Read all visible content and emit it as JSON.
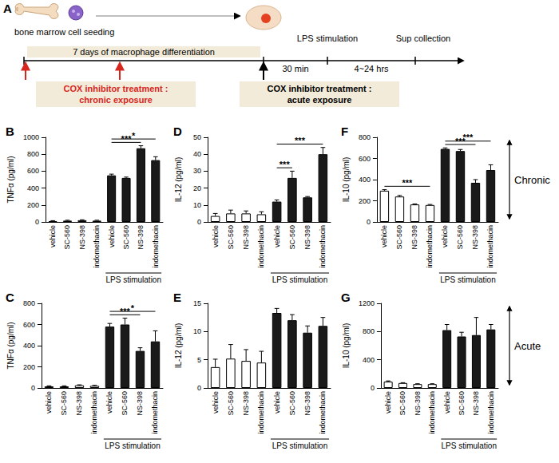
{
  "panel_a": {
    "label": "A",
    "seeding": "bone marrow cell seeding",
    "differentiation": "7 days of macrophage differentiation",
    "stimulation": "LPS stimulation",
    "collection": "Sup collection",
    "time_1": "30 min",
    "time_2": "4~24 hrs",
    "chronic": [
      "COX inhibitor treatment :",
      "chronic exposure"
    ],
    "acute": [
      "COX inhibitor treatment :",
      "acute exposure"
    ]
  },
  "row_labels": [
    "Chronic",
    "Acute"
  ],
  "chart_data": [
    {
      "type": "bar",
      "title": "B",
      "ylabel": "TNFα (pg/ml)",
      "categories": [
        "vehicle",
        "SC-560",
        "NS-398",
        "indomethacin",
        "vehicle",
        "SC-560",
        "NS-398",
        "indomethacin"
      ],
      "values": [
        10,
        15,
        20,
        15,
        550,
        520,
        870,
        730
      ],
      "errors": [
        5,
        5,
        5,
        5,
        15,
        10,
        30,
        40
      ],
      "colors": [
        "#ffffff",
        "#ffffff",
        "#ffffff",
        "#ffffff",
        "#1a1a1a",
        "#1a1a1a",
        "#1a1a1a",
        "#1a1a1a"
      ],
      "ylim": [
        0,
        1000
      ],
      "yticks": [
        0,
        200,
        400,
        600,
        800,
        1000
      ],
      "annotations": [
        {
          "text": "***",
          "from": 4,
          "to": 6
        },
        {
          "text": "*",
          "from": 4,
          "to": 7
        }
      ],
      "group_label": {
        "text": "LPS stimulation",
        "from": 4,
        "to": 7
      }
    },
    {
      "type": "bar",
      "title": "C",
      "ylabel": "TNFα (pg/ml)",
      "categories": [
        "vehicle",
        "SC-560",
        "NS-398",
        "indomethacin",
        "vehicle",
        "SC-560",
        "NS-398",
        "indomethacin"
      ],
      "values": [
        15,
        15,
        25,
        20,
        580,
        600,
        350,
        440
      ],
      "errors": [
        5,
        5,
        5,
        5,
        30,
        60,
        30,
        100
      ],
      "colors": [
        "#ffffff",
        "#ffffff",
        "#ffffff",
        "#ffffff",
        "#1a1a1a",
        "#1a1a1a",
        "#1a1a1a",
        "#1a1a1a"
      ],
      "ylim": [
        0,
        800
      ],
      "yticks": [
        0,
        200,
        400,
        600,
        800
      ],
      "annotations": [
        {
          "text": "***",
          "from": 4,
          "to": 6
        },
        {
          "text": "*",
          "from": 4,
          "to": 7
        }
      ],
      "group_label": {
        "text": "LPS stimulation",
        "from": 4,
        "to": 7
      }
    },
    {
      "type": "bar",
      "title": "D",
      "ylabel": "IL-12 (pg/ml)",
      "categories": [
        "vehicle",
        "SC-560",
        "NS-398",
        "indomethacin",
        "vehicle",
        "SC-560",
        "NS-398",
        "indomethacin"
      ],
      "values": [
        3.5,
        5,
        5,
        4.5,
        12,
        26,
        14.5,
        40
      ],
      "errors": [
        1.5,
        2,
        1.5,
        1.5,
        1,
        4,
        0.5,
        4
      ],
      "colors": [
        "#ffffff",
        "#ffffff",
        "#ffffff",
        "#ffffff",
        "#1a1a1a",
        "#1a1a1a",
        "#1a1a1a",
        "#1a1a1a"
      ],
      "ylim": [
        0,
        50
      ],
      "yticks": [
        0,
        10,
        20,
        30,
        40,
        50
      ],
      "annotations": [
        {
          "text": "***",
          "from": 4,
          "to": 5
        },
        {
          "text": "***",
          "from": 4,
          "to": 7
        }
      ],
      "group_label": {
        "text": "LPS stimulation",
        "from": 4,
        "to": 7
      }
    },
    {
      "type": "bar",
      "title": "E",
      "ylabel": "IL-12 (pg/ml)",
      "categories": [
        "vehicle",
        "SC-560",
        "NS-398",
        "indomethacin",
        "vehicle",
        "SC-560",
        "NS-398",
        "indomethacin"
      ],
      "values": [
        3.7,
        5.2,
        4.8,
        4.5,
        13.3,
        12,
        9.8,
        11
      ],
      "errors": [
        1.4,
        2.5,
        2,
        2,
        0.8,
        1,
        1.2,
        1.5
      ],
      "colors": [
        "#ffffff",
        "#ffffff",
        "#ffffff",
        "#ffffff",
        "#1a1a1a",
        "#1a1a1a",
        "#1a1a1a",
        "#1a1a1a"
      ],
      "ylim": [
        0,
        15
      ],
      "yticks": [
        0,
        5,
        10,
        15
      ],
      "annotations": [],
      "group_label": {
        "text": "LPS stimulation",
        "from": 4,
        "to": 7
      }
    },
    {
      "type": "bar",
      "title": "F",
      "ylabel": "IL-10 (pg/ml)",
      "categories": [
        "vehicle",
        "SC-560",
        "NS-398",
        "indomethacin",
        "vehicle",
        "SC-560",
        "NS-398",
        "indomethacin"
      ],
      "values": [
        295,
        240,
        165,
        160,
        690,
        670,
        370,
        490
      ],
      "errors": [
        10,
        10,
        5,
        5,
        10,
        15,
        30,
        50
      ],
      "colors": [
        "#ffffff",
        "#ffffff",
        "#ffffff",
        "#ffffff",
        "#1a1a1a",
        "#1a1a1a",
        "#1a1a1a",
        "#1a1a1a"
      ],
      "ylim": [
        0,
        800
      ],
      "yticks": [
        0,
        200,
        400,
        600,
        800
      ],
      "annotations": [
        {
          "text": "***",
          "from": 0,
          "to": 3
        },
        {
          "text": "***",
          "from": 4,
          "to": 6
        },
        {
          "text": "***",
          "from": 4,
          "to": 7
        }
      ],
      "group_label": {
        "text": "LPS stimulation",
        "from": 4,
        "to": 7
      }
    },
    {
      "type": "bar",
      "title": "G",
      "ylabel": "IL-10 (pg/ml)",
      "categories": [
        "vehicle",
        "SC-560",
        "NS-398",
        "indomethacin",
        "vehicle",
        "SC-560",
        "NS-398",
        "indomethacin"
      ],
      "values": [
        90,
        70,
        55,
        55,
        820,
        730,
        750,
        830
      ],
      "errors": [
        10,
        5,
        5,
        5,
        80,
        60,
        250,
        70
      ],
      "colors": [
        "#ffffff",
        "#ffffff",
        "#ffffff",
        "#ffffff",
        "#1a1a1a",
        "#1a1a1a",
        "#1a1a1a",
        "#1a1a1a"
      ],
      "ylim": [
        0,
        1200
      ],
      "yticks": [
        0,
        400,
        800,
        1200
      ],
      "annotations": [],
      "group_label": {
        "text": "LPS stimulation",
        "from": 4,
        "to": 7
      }
    }
  ]
}
